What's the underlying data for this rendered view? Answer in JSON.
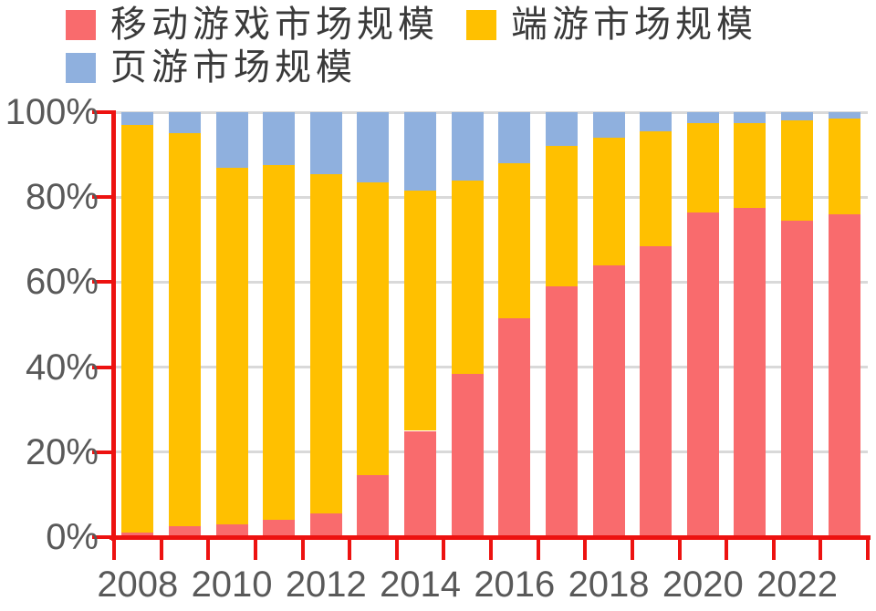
{
  "chart_data": {
    "type": "bar",
    "stacked": true,
    "percent": true,
    "title": "",
    "xlabel": "",
    "ylabel": "",
    "ylim": [
      0,
      100
    ],
    "grid": true,
    "legend_position": "top-left",
    "categories": [
      "2008",
      "2009",
      "2010",
      "2011",
      "2012",
      "2013",
      "2014",
      "2015",
      "2016",
      "2017",
      "2018",
      "2019",
      "2020",
      "2021",
      "2022",
      "2023"
    ],
    "xtick_labels_shown": [
      "2008",
      "2010",
      "2012",
      "2014",
      "2016",
      "2018",
      "2020",
      "2022"
    ],
    "yticks": [
      "0%",
      "20%",
      "40%",
      "60%",
      "80%",
      "100%"
    ],
    "series": [
      {
        "name": "移动游戏市场规模",
        "color": "#F96B6D",
        "values": [
          1,
          2.5,
          3,
          4,
          5.5,
          14.5,
          25,
          38.5,
          51.5,
          59,
          64,
          68.5,
          76.5,
          77.5,
          74.5,
          76
        ]
      },
      {
        "name": "端游市场规模",
        "color": "#FFC000",
        "values": [
          96,
          92.5,
          84,
          83.5,
          80,
          69,
          56.5,
          45.5,
          36.5,
          33,
          30,
          27,
          21,
          20,
          23.5,
          22.5
        ]
      },
      {
        "name": "页游市场规模",
        "color": "#8FB0DE",
        "values": [
          3,
          5,
          13,
          12.5,
          14.5,
          16.5,
          18.5,
          16,
          12,
          8,
          6,
          4.5,
          2.5,
          2.5,
          2,
          1.5
        ]
      }
    ],
    "colors": {
      "axis": "#ED1210",
      "gridline": "#D9D9D9",
      "tick_label": "#595959",
      "legend_text": "#3A3A3A"
    }
  }
}
